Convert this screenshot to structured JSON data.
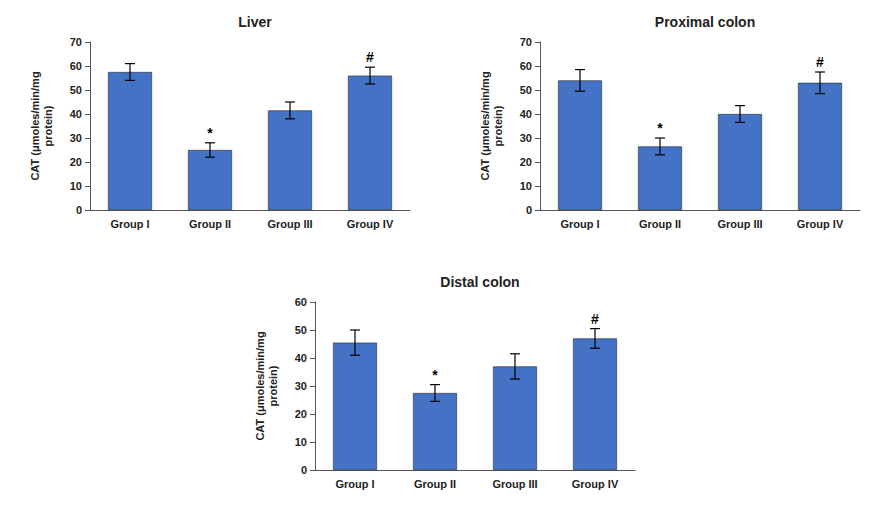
{
  "chart_data": [
    {
      "type": "bar",
      "title": "Liver",
      "categories": [
        "Group I",
        "Group II",
        "Group III",
        "Group IV"
      ],
      "values": [
        57.5,
        25.0,
        41.5,
        56.0
      ],
      "errors": [
        3.5,
        3.0,
        3.5,
        3.5
      ],
      "annotations": [
        {
          "category": "Group II",
          "text": "*"
        },
        {
          "category": "Group IV",
          "text": "#"
        }
      ],
      "ylabel": "CAT (μmoles/min/mg\nprotein)",
      "color": "#4472C4",
      "ylim": [
        0,
        70
      ],
      "yticks": [
        0,
        10,
        20,
        30,
        40,
        50,
        60,
        70
      ],
      "grid": false
    },
    {
      "type": "bar",
      "title": "Proximal colon",
      "categories": [
        "Group I",
        "Group II",
        "Group III",
        "Group IV"
      ],
      "values": [
        54.0,
        26.5,
        40.0,
        53.0
      ],
      "errors": [
        4.5,
        3.5,
        3.5,
        4.5
      ],
      "annotations": [
        {
          "category": "Group II",
          "text": "*"
        },
        {
          "category": "Group IV",
          "text": "#"
        }
      ],
      "ylabel": "CAT (μmoles/min/mg\nprotein)",
      "color": "#4472C4",
      "ylim": [
        0,
        70
      ],
      "yticks": [
        0,
        10,
        20,
        30,
        40,
        50,
        60,
        70
      ],
      "grid": false
    },
    {
      "type": "bar",
      "title": "Distal colon",
      "categories": [
        "Group I",
        "Group II",
        "Group III",
        "Group IV"
      ],
      "values": [
        45.5,
        27.5,
        37.0,
        47.0
      ],
      "errors": [
        4.5,
        3.0,
        4.5,
        3.5
      ],
      "annotations": [
        {
          "category": "Group II",
          "text": "*"
        },
        {
          "category": "Group IV",
          "text": "#"
        }
      ],
      "ylabel": "CAT (μmoles/min/mg\nprotein)",
      "color": "#4472C4",
      "ylim": [
        0,
        60
      ],
      "yticks": [
        0,
        10,
        20,
        30,
        40,
        50,
        60
      ],
      "grid": false
    }
  ]
}
